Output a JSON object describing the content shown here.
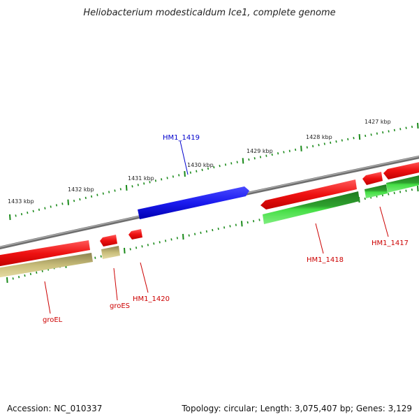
{
  "title": "Heliobacterium modesticaldum Ice1, complete genome",
  "footer": {
    "accession": "Accession: NC_010337",
    "summary": "Topology: circular; Length: 3,075,407 bp; Genes: 3,129"
  },
  "scale_labels": [
    "1433 kbp",
    "1432 kbp",
    "1431 kbp",
    "1430 kbp",
    "1429 kbp",
    "1428 kbp",
    "1427 kbp"
  ],
  "gene_labels": [
    {
      "text": "HM1_1419",
      "color": "#0000cc"
    },
    {
      "text": "groEL",
      "color": "#cc0000"
    },
    {
      "text": "groES",
      "color": "#cc0000"
    },
    {
      "text": "HM1_1420",
      "color": "#cc0000"
    },
    {
      "text": "HM1_1418",
      "color": "#cc0000"
    },
    {
      "text": "HM1_1417",
      "color": "#cc0000"
    }
  ],
  "colors": {
    "backbone": "#808080",
    "gene_red": "#ee1111",
    "gene_blue": "#1a1aee",
    "gene_green": "#33cc33",
    "gene_khaki": "#c8bd7a",
    "tick_green": "#1a8a1a"
  }
}
